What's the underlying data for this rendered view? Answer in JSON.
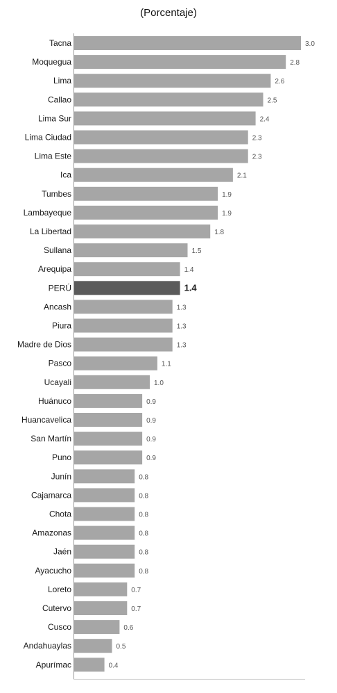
{
  "chart_data": {
    "type": "bar",
    "orientation": "horizontal",
    "title": "(Porcentaje)",
    "categories": [
      "Tacna",
      "Moquegua",
      "Lima",
      "Callao",
      "Lima Sur",
      "Lima Ciudad",
      "Lima Este",
      "Ica",
      "Tumbes",
      "Lambayeque",
      "La Libertad",
      "Sullana",
      "Arequipa",
      "PERÚ",
      "Ancash",
      "Piura",
      "Madre de Dios",
      "Pasco",
      "Ucayali",
      "Huánuco",
      "Huancavelica",
      "San Martín",
      "Puno",
      "Junín",
      "Cajamarca",
      "Chota",
      "Amazonas",
      "Jaén",
      "Ayacucho",
      "Loreto",
      "Cutervo",
      "Cusco",
      "Andahuaylas",
      "Apurímac"
    ],
    "values": [
      3.0,
      2.8,
      2.6,
      2.5,
      2.4,
      2.3,
      2.3,
      2.1,
      1.9,
      1.9,
      1.8,
      1.5,
      1.4,
      1.4,
      1.3,
      1.3,
      1.3,
      1.1,
      1.0,
      0.9,
      0.9,
      0.9,
      0.9,
      0.8,
      0.8,
      0.8,
      0.8,
      0.8,
      0.8,
      0.7,
      0.7,
      0.6,
      0.5,
      0.4
    ],
    "value_labels": [
      "3.0",
      "2.8",
      "2.6",
      "2.5",
      "2.4",
      "2.3",
      "2.3",
      "2.1",
      "1.9",
      "1.9",
      "1.8",
      "1.5",
      "1.4",
      "1.4",
      "1.3",
      "1.3",
      "1.3",
      "1.1",
      "1.0",
      "0.9",
      "0.9",
      "0.9",
      "0.9",
      "0.8",
      "0.8",
      "0.8",
      "0.8",
      "0.8",
      "0.8",
      "0.7",
      "0.7",
      "0.6",
      "0.5",
      "0.4"
    ],
    "highlight": "PERÚ",
    "xlim": [
      0,
      3.0
    ],
    "colors": {
      "bar": "#a6a6a6",
      "highlight_bar": "#5b5b5b",
      "axis": "#999999"
    },
    "grid": false,
    "legend": "none"
  }
}
